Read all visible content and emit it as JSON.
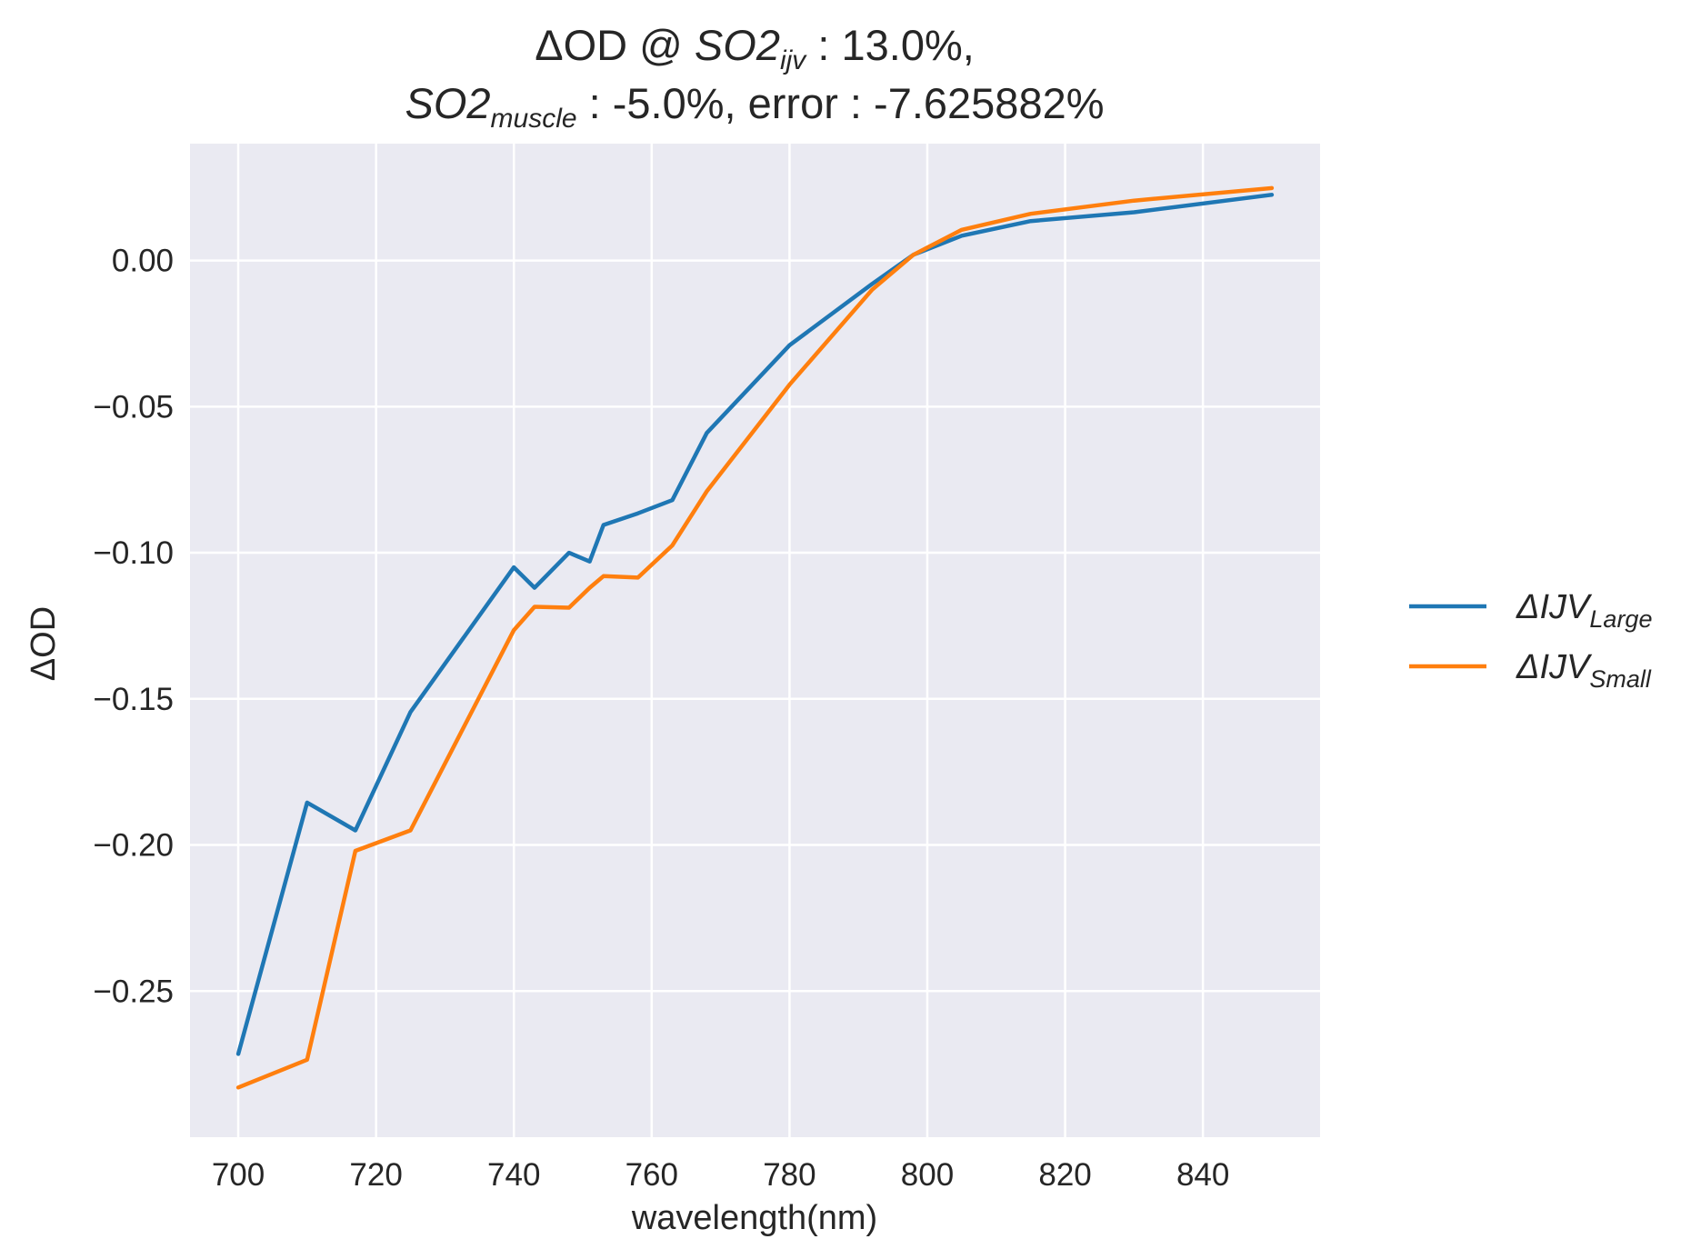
{
  "chart_data": {
    "type": "line",
    "title": {
      "line1": {
        "prefix": "ΔOD @ ",
        "var": "SO2",
        "sub": "ijv",
        "suffix": " : 13.0%,"
      },
      "line2": {
        "var": "SO2",
        "sub": "muscle",
        "suffix": " : -5.0%, error : -7.625882%"
      }
    },
    "xlabel": "wavelength(nm)",
    "ylabel": "ΔOD",
    "xlim": [
      693,
      857
    ],
    "ylim": [
      -0.3,
      0.04
    ],
    "xticks": [
      700,
      720,
      740,
      760,
      780,
      800,
      820,
      840
    ],
    "yticks": [
      0.0,
      -0.05,
      -0.1,
      -0.15,
      -0.2,
      -0.25
    ],
    "ytick_labels": [
      "0.00",
      "−0.05",
      "−0.10",
      "−0.15",
      "−0.20",
      "−0.25"
    ],
    "grid": true,
    "legend_position": "outside-right",
    "background": "#eaeaf2",
    "series": [
      {
        "name_main": "ΔIJV",
        "name_sub": "Large",
        "color": "#1f77b4",
        "x": [
          700,
          710,
          717,
          725,
          740,
          743,
          748,
          751,
          753,
          758,
          763,
          768,
          780,
          792,
          798,
          805,
          815,
          830,
          850
        ],
        "y": [
          -0.2715,
          -0.1855,
          -0.195,
          -0.1545,
          -0.105,
          -0.112,
          -0.1,
          -0.103,
          -0.0905,
          -0.0865,
          -0.082,
          -0.059,
          -0.029,
          -0.008,
          0.002,
          0.0085,
          0.0135,
          0.0165,
          0.0225
        ]
      },
      {
        "name_main": "ΔIJV",
        "name_sub": "Small",
        "color": "#ff7f0e",
        "x": [
          700,
          710,
          717,
          725,
          740,
          743,
          748,
          751,
          753,
          758,
          763,
          768,
          780,
          792,
          798,
          805,
          815,
          830,
          850
        ],
        "y": [
          -0.283,
          -0.2735,
          -0.202,
          -0.195,
          -0.1265,
          -0.1185,
          -0.1188,
          -0.112,
          -0.108,
          -0.1085,
          -0.0975,
          -0.079,
          -0.0425,
          -0.01,
          0.002,
          0.0105,
          0.016,
          0.0205,
          0.0248
        ]
      }
    ]
  }
}
